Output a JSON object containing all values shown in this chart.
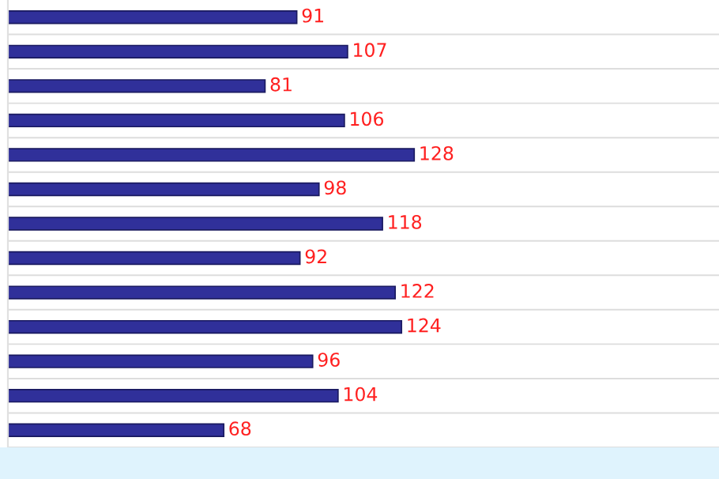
{
  "chart_data": {
    "type": "bar",
    "orientation": "horizontal",
    "categories": [
      null,
      null,
      null,
      null,
      null,
      null,
      null,
      null,
      null,
      null,
      null,
      null,
      null
    ],
    "values": [
      91,
      107,
      81,
      106,
      128,
      98,
      118,
      92,
      122,
      124,
      96,
      104,
      68
    ],
    "color": "#30309a",
    "data_labels": true,
    "grid": "y",
    "legend": false
  }
}
